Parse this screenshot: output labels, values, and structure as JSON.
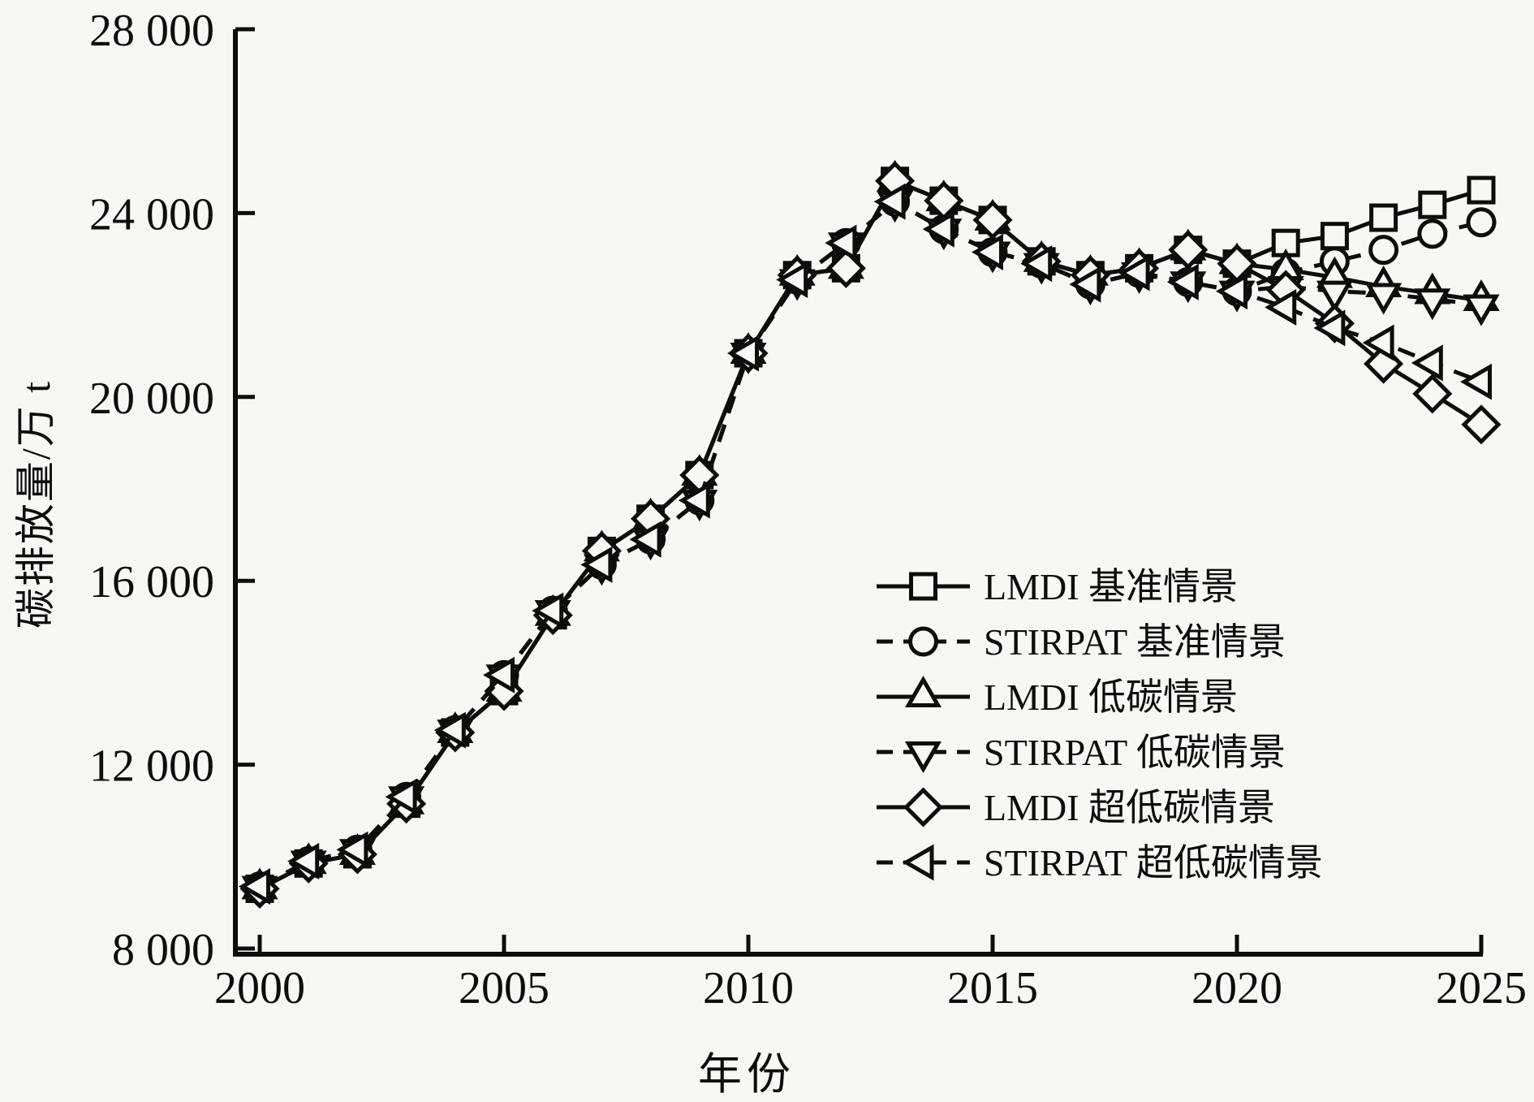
{
  "colors": {
    "foreground": "#0d0d0d",
    "background": "#f7f7f4"
  },
  "chart_data": {
    "type": "line",
    "title": "",
    "xlabel": "年份",
    "ylabel": "碳排放量/万 t",
    "xlim": [
      1999.5,
      2025.05
    ],
    "ylim": [
      7875,
      28000
    ],
    "grid": false,
    "legend_position": "inside-right",
    "x_ticks": [
      2000,
      2005,
      2010,
      2015,
      2020,
      2025
    ],
    "x_tick_labels": [
      "2000",
      "2005",
      "2010",
      "2015",
      "2020",
      "2025"
    ],
    "y_ticks": [
      8000,
      12000,
      16000,
      20000,
      24000,
      28000
    ],
    "y_tick_labels": [
      "8 000",
      "12 000",
      "16 000",
      "20 000",
      "24 000",
      "28 000"
    ],
    "x": [
      2000,
      2001,
      2002,
      2003,
      2004,
      2005,
      2006,
      2007,
      2008,
      2009,
      2010,
      2011,
      2012,
      2013,
      2014,
      2015,
      2016,
      2017,
      2018,
      2019,
      2020,
      2021,
      2022,
      2023,
      2024,
      2025
    ],
    "series": [
      {
        "id": "lmdi-base",
        "name": "LMDI 基准情景",
        "marker": "square",
        "line": "solid",
        "values": [
          9300,
          9850,
          10050,
          11150,
          12700,
          13600,
          15250,
          16650,
          17350,
          18300,
          20950,
          22650,
          22800,
          24700,
          24270,
          23850,
          22950,
          22650,
          22800,
          23200,
          22900,
          23350,
          23500,
          23900,
          24180,
          24500
        ]
      },
      {
        "id": "stirpat-base",
        "name": "STIRPAT 基准情景",
        "marker": "circle",
        "line": "dashed",
        "values": [
          9350,
          9900,
          10150,
          11300,
          12750,
          13950,
          15350,
          16350,
          16900,
          17750,
          20950,
          22550,
          23350,
          24250,
          23650,
          23150,
          22900,
          22450,
          22700,
          22500,
          22300,
          22700,
          22950,
          23200,
          23550,
          23800
        ]
      },
      {
        "id": "lmdi-low",
        "name": "LMDI 低碳情景",
        "marker": "triangle-up",
        "line": "solid",
        "values": [
          9300,
          9850,
          10050,
          11150,
          12700,
          13600,
          15250,
          16650,
          17350,
          18300,
          20950,
          22650,
          22800,
          24700,
          24270,
          23850,
          22950,
          22650,
          22800,
          23200,
          22900,
          22770,
          22600,
          22400,
          22250,
          22100
        ]
      },
      {
        "id": "stirpat-low",
        "name": "STIRPAT 低碳情景",
        "marker": "triangle-down",
        "line": "dashed",
        "values": [
          9350,
          9900,
          10150,
          11300,
          12750,
          13950,
          15350,
          16350,
          16900,
          17750,
          20950,
          22550,
          23350,
          24250,
          23650,
          23150,
          22900,
          22450,
          22700,
          22500,
          22300,
          22400,
          22300,
          22250,
          22130,
          22000
        ]
      },
      {
        "id": "lmdi-ultralow",
        "name": "LMDI 超低碳情景",
        "marker": "diamond",
        "line": "solid",
        "values": [
          9300,
          9850,
          10050,
          11150,
          12700,
          13600,
          15250,
          16650,
          17350,
          18300,
          20950,
          22650,
          22800,
          24700,
          24270,
          23850,
          22950,
          22650,
          22800,
          23200,
          22900,
          22330,
          21600,
          20720,
          20070,
          19400
        ]
      },
      {
        "id": "stirpat-ultralow",
        "name": "STIRPAT 超低碳情景",
        "marker": "triangle-left",
        "line": "dashed",
        "values": [
          9350,
          9900,
          10150,
          11300,
          12750,
          13950,
          15350,
          16350,
          16900,
          17750,
          20950,
          22550,
          23350,
          24250,
          23650,
          23150,
          22900,
          22450,
          22700,
          22500,
          22300,
          21950,
          21500,
          21180,
          20740,
          20330
        ]
      }
    ]
  }
}
